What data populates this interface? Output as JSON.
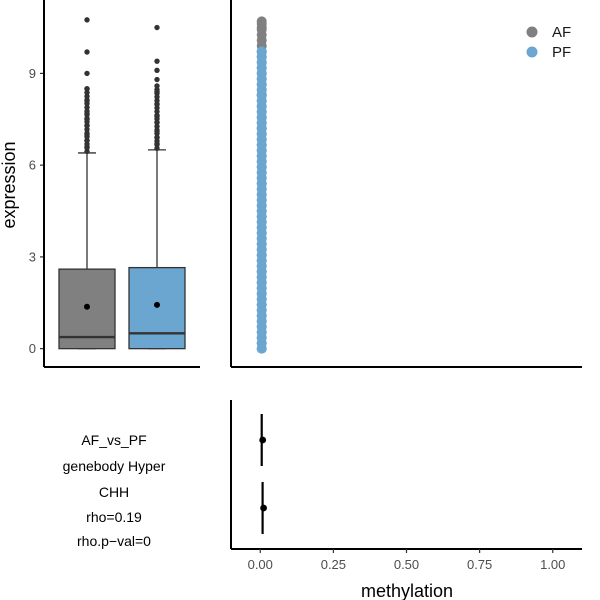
{
  "colors": {
    "AF": "#808080",
    "PF": "#6aa6cf",
    "dark": "#333333"
  },
  "chart_data": [
    {
      "type": "box",
      "ylabel": "expression",
      "ylim": [
        -0.6,
        11.4
      ],
      "yticks": [
        0,
        3,
        6,
        9
      ],
      "groups": [
        {
          "name": "AF",
          "color": "#808080",
          "q1": 0.0,
          "median": 0.38,
          "q3": 2.6,
          "whisker_low": 0.0,
          "whisker_high": 6.4,
          "mean": 1.37,
          "outliers": [
            6.6,
            6.8,
            7.0,
            7.3,
            7.5,
            7.7,
            8.1,
            8.5,
            9.0,
            9.7,
            10.75
          ]
        },
        {
          "name": "PF",
          "color": "#6aa6cf",
          "q1": 0.0,
          "median": 0.5,
          "q3": 2.65,
          "whisker_low": 0.0,
          "whisker_high": 6.5,
          "mean": 1.43,
          "outliers": [
            6.7,
            6.9,
            7.1,
            7.4,
            7.6,
            8.0,
            8.4,
            8.8,
            9.1,
            9.4,
            10.5
          ]
        }
      ]
    },
    {
      "type": "scatter",
      "xlim": [
        -0.1,
        1.1
      ],
      "ylim": [
        -0.6,
        11.4
      ],
      "legend": {
        "position": "top-right",
        "entries": [
          "AF",
          "PF"
        ]
      },
      "series": [
        {
          "name": "AF",
          "color": "#808080",
          "x": 0.005,
          "y_range": [
            0.0,
            10.7
          ],
          "y_extra": [
            8.3,
            9.7,
            10.5,
            10.7
          ]
        },
        {
          "name": "PF",
          "color": "#6aa6cf",
          "x": 0.005,
          "y_range": [
            0.0,
            9.8
          ]
        }
      ]
    },
    {
      "type": "pointrange",
      "xlabel": "methylation",
      "xlim": [
        -0.1,
        1.1
      ],
      "xticks": [
        0.0,
        0.25,
        0.5,
        0.75,
        1.0
      ],
      "xtick_labels": [
        "0.00",
        "0.25",
        "0.50",
        "0.75",
        "1.00"
      ],
      "points": [
        {
          "name": "AF",
          "x": 0.005,
          "xmin": 0.0,
          "xmax": 0.01
        },
        {
          "name": "PF",
          "x": 0.008,
          "xmin": 0.0,
          "xmax": 0.012
        }
      ]
    }
  ],
  "info": {
    "lines": [
      "AF_vs_PF",
      "genebody Hyper",
      "CHH",
      "rho=0.19",
      "rho.p−val=0"
    ]
  }
}
